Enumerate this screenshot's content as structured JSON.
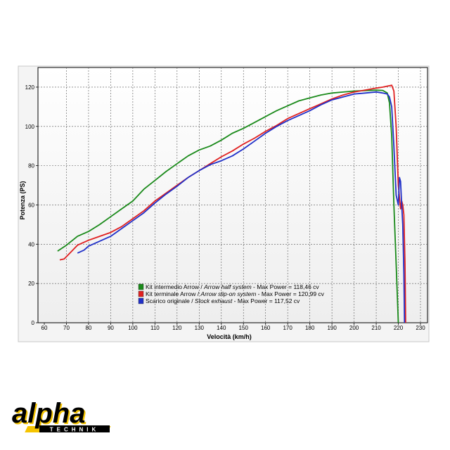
{
  "chart_data": {
    "type": "line",
    "xlabel": "Velocità (km/h)",
    "ylabel": "Potenza (PS)",
    "xlim": [
      60,
      230
    ],
    "ylim": [
      0,
      130
    ],
    "x_ticks": [
      60,
      70,
      80,
      90,
      100,
      110,
      120,
      130,
      140,
      150,
      160,
      170,
      180,
      190,
      200,
      210,
      220,
      230
    ],
    "y_ticks": [
      0,
      20,
      40,
      60,
      80,
      100,
      120
    ],
    "grid": true,
    "legend_position": "lower-center",
    "series": [
      {
        "color": "#1a8a1a",
        "legend": {
          "prefix": "Kit intermedio Arrow / ",
          "italic": "Arrow half system",
          "suffix": " - Max Power = 118,46 cv"
        },
        "points": [
          [
            66,
            36.5
          ],
          [
            70,
            39.5
          ],
          [
            75,
            44
          ],
          [
            80,
            46.5
          ],
          [
            85,
            50
          ],
          [
            90,
            54
          ],
          [
            95,
            58
          ],
          [
            100,
            62
          ],
          [
            105,
            68
          ],
          [
            110,
            72.5
          ],
          [
            115,
            77
          ],
          [
            120,
            81
          ],
          [
            125,
            85
          ],
          [
            130,
            88
          ],
          [
            135,
            90
          ],
          [
            140,
            93
          ],
          [
            145,
            96.5
          ],
          [
            150,
            99
          ],
          [
            155,
            102
          ],
          [
            160,
            105
          ],
          [
            165,
            108
          ],
          [
            170,
            110.5
          ],
          [
            175,
            113
          ],
          [
            180,
            114.5
          ],
          [
            185,
            116
          ],
          [
            190,
            117
          ],
          [
            195,
            117.5
          ],
          [
            200,
            118
          ],
          [
            205,
            118.2
          ],
          [
            210,
            118.46
          ],
          [
            213,
            118.3
          ],
          [
            215,
            117
          ],
          [
            216,
            112
          ],
          [
            217,
            95
          ],
          [
            218,
            60
          ],
          [
            219,
            30
          ],
          [
            220,
            0
          ]
        ]
      },
      {
        "color": "#e02020",
        "legend": {
          "prefix": "Kit terminale Arrow / ",
          "italic": "Arrow slip-on system",
          "suffix": " - Max Power = 120,99 cv"
        },
        "points": [
          [
            67,
            32
          ],
          [
            69,
            32.5
          ],
          [
            72,
            36
          ],
          [
            75,
            39.5
          ],
          [
            80,
            42
          ],
          [
            85,
            44
          ],
          [
            90,
            46
          ],
          [
            95,
            49
          ],
          [
            100,
            53
          ],
          [
            105,
            57
          ],
          [
            110,
            62
          ],
          [
            115,
            66
          ],
          [
            120,
            70
          ],
          [
            125,
            74
          ],
          [
            130,
            77.5
          ],
          [
            135,
            81
          ],
          [
            140,
            84.5
          ],
          [
            145,
            87.5
          ],
          [
            150,
            91
          ],
          [
            155,
            94
          ],
          [
            160,
            97.5
          ],
          [
            165,
            100.5
          ],
          [
            170,
            104
          ],
          [
            175,
            106.5
          ],
          [
            180,
            109
          ],
          [
            185,
            111.5
          ],
          [
            190,
            114
          ],
          [
            195,
            116
          ],
          [
            200,
            117.5
          ],
          [
            205,
            118.5
          ],
          [
            210,
            119.5
          ],
          [
            213,
            120
          ],
          [
            215,
            120.5
          ],
          [
            217,
            120.99
          ],
          [
            218,
            118
          ],
          [
            219,
            100
          ],
          [
            220,
            70
          ],
          [
            221,
            58
          ],
          [
            221.5,
            62
          ],
          [
            222,
            60
          ],
          [
            222.5,
            55
          ],
          [
            223,
            30
          ],
          [
            223.3,
            0
          ]
        ]
      },
      {
        "color": "#2030c8",
        "legend": {
          "prefix": "Scarico originale / ",
          "italic": "Stock exhaust",
          "suffix": " - Max Power = 117,52 cv"
        },
        "points": [
          [
            75,
            35.5
          ],
          [
            78,
            37
          ],
          [
            80,
            39
          ],
          [
            85,
            41.5
          ],
          [
            90,
            44
          ],
          [
            95,
            48
          ],
          [
            100,
            52
          ],
          [
            105,
            56
          ],
          [
            110,
            61
          ],
          [
            115,
            65.5
          ],
          [
            120,
            69.5
          ],
          [
            125,
            74
          ],
          [
            130,
            77.5
          ],
          [
            135,
            80.5
          ],
          [
            140,
            82.5
          ],
          [
            145,
            85
          ],
          [
            150,
            88.5
          ],
          [
            155,
            92.5
          ],
          [
            160,
            96.5
          ],
          [
            165,
            100
          ],
          [
            170,
            103
          ],
          [
            175,
            105.5
          ],
          [
            180,
            108
          ],
          [
            185,
            111
          ],
          [
            190,
            113.5
          ],
          [
            195,
            115
          ],
          [
            200,
            116.5
          ],
          [
            205,
            117
          ],
          [
            210,
            117.52
          ],
          [
            213,
            117
          ],
          [
            215,
            116.5
          ],
          [
            216,
            115
          ],
          [
            217,
            110
          ],
          [
            218,
            90
          ],
          [
            219,
            65
          ],
          [
            220,
            60
          ],
          [
            220.5,
            74
          ],
          [
            221,
            72
          ],
          [
            221.5,
            60
          ],
          [
            222,
            50
          ],
          [
            222.5,
            25
          ],
          [
            222.8,
            0
          ]
        ]
      }
    ]
  },
  "logo": {
    "text": "alpha",
    "subtext": "TECHNIK",
    "colors": {
      "yellow": "#f5c400",
      "black": "#000000"
    }
  }
}
